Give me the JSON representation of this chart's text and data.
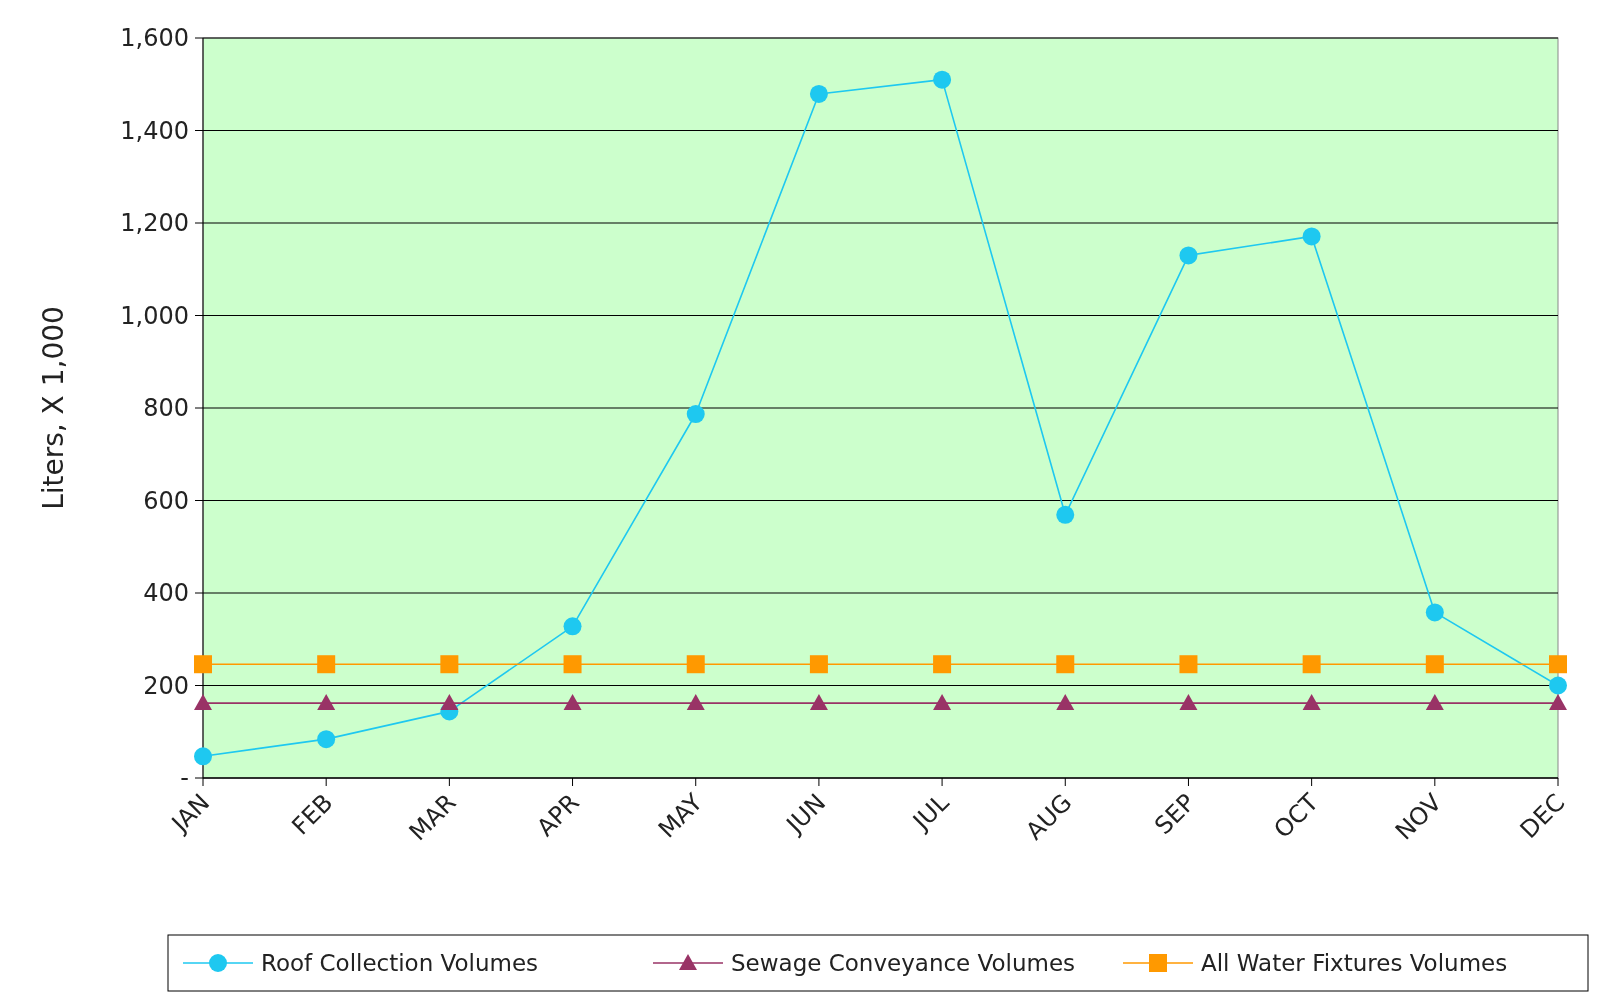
{
  "chart_data": {
    "type": "line",
    "ylabel": "Liters, X 1,000",
    "categories": [
      "JAN",
      "FEB",
      "MAR",
      "APR",
      "MAY",
      "JUN",
      "JUL",
      "AUG",
      "SEP",
      "OCT",
      "NOV",
      "DEC"
    ],
    "series": [
      {
        "name": "Roof Collection Volumes",
        "color": "#1ec8f0",
        "marker": "circle",
        "values": [
          47,
          84,
          144,
          328,
          787,
          1479,
          1510,
          569,
          1130,
          1171,
          358,
          200
        ]
      },
      {
        "name": "Sewage Conveyance Volumes",
        "color": "#993366",
        "marker": "triangle",
        "values": [
          162,
          162,
          162,
          162,
          162,
          162,
          162,
          162,
          162,
          162,
          162,
          162
        ]
      },
      {
        "name": "All Water Fixtures Volumes",
        "color": "#ff9900",
        "marker": "square",
        "values": [
          246,
          246,
          246,
          246,
          246,
          246,
          246,
          246,
          246,
          246,
          246,
          246
        ]
      }
    ],
    "ylim": [
      0,
      1600
    ],
    "yticks": [
      {
        "value": 0,
        "label": "-"
      },
      {
        "value": 200,
        "label": "200"
      },
      {
        "value": 400,
        "label": "400"
      },
      {
        "value": 600,
        "label": "600"
      },
      {
        "value": 800,
        "label": "800"
      },
      {
        "value": 1000,
        "label": "1,000"
      },
      {
        "value": 1200,
        "label": "1,200"
      },
      {
        "value": 1400,
        "label": "1,400"
      },
      {
        "value": 1600,
        "label": "1,600"
      }
    ],
    "grid": "y",
    "legend": "bottom",
    "line_style": "solid"
  }
}
